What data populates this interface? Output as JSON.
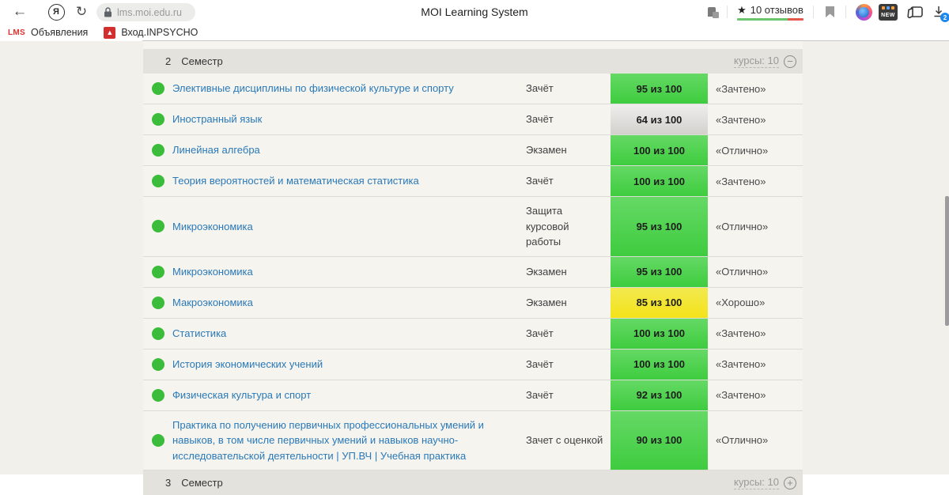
{
  "browser": {
    "url": "lms.moi.edu.ru",
    "page_title": "MOI Learning System",
    "reviews_label": "10 отзывов",
    "downloads_count": "2",
    "new_badge": "NEW",
    "bookmarks": [
      {
        "favicon_text": "LMS",
        "label": "Объявления"
      },
      {
        "favicon_text": "М",
        "label": "Вход.INPSYCHO"
      }
    ]
  },
  "section_header": {
    "number": "2",
    "label": "Семестр",
    "courses": "курсы: 10",
    "toggle": "−"
  },
  "section_footer": {
    "number": "3",
    "label": "Семестр",
    "courses": "курсы: 10",
    "toggle": "+"
  },
  "courses": [
    {
      "name": "Элективные дисциплины по физической культуре и спорту",
      "type": "Зачёт",
      "score": "95 из 100",
      "grade": "«Зачтено»",
      "badge": "green"
    },
    {
      "name": "Иностранный язык",
      "type": "Зачёт",
      "score": "64 из 100",
      "grade": "«Зачтено»",
      "badge": "gray"
    },
    {
      "name": "Линейная алгебра",
      "type": "Экзамен",
      "score": "100 из 100",
      "grade": "«Отлично»",
      "badge": "green"
    },
    {
      "name": "Теория вероятностей и математическая статистика",
      "type": "Зачёт",
      "score": "100 из 100",
      "grade": "«Зачтено»",
      "badge": "green"
    },
    {
      "name": "Микроэкономика",
      "type": "Защита курсовой работы",
      "score": "95 из 100",
      "grade": "«Отлично»",
      "badge": "green"
    },
    {
      "name": "Микроэкономика",
      "type": "Экзамен",
      "score": "95 из 100",
      "grade": "«Отлично»",
      "badge": "green"
    },
    {
      "name": "Макроэкономика",
      "type": "Экзамен",
      "score": "85 из 100",
      "grade": "«Хорошо»",
      "badge": "yellow"
    },
    {
      "name": "Статистика",
      "type": "Зачёт",
      "score": "100 из 100",
      "grade": "«Зачтено»",
      "badge": "green"
    },
    {
      "name": "История экономических учений",
      "type": "Зачёт",
      "score": "100 из 100",
      "grade": "«Зачтено»",
      "badge": "green"
    },
    {
      "name": "Физическая культура и спорт",
      "type": "Зачёт",
      "score": "92 из 100",
      "grade": "«Зачтено»",
      "badge": "green"
    },
    {
      "name": "Практика по получению первичных профессиональных умений и навыков, в том числе первичных умений и навыков научно-исследовательской деятельности | УП.ВЧ | Учебная практика",
      "type": "Зачет с оценкой",
      "score": "90 из 100",
      "grade": "«Отлично»",
      "badge": "green"
    }
  ],
  "colors": {
    "status_dot": "#3bbd3b",
    "badge_green_top": "#65d965",
    "badge_green_bottom": "#3fcc3f",
    "badge_yellow_top": "#f2e94f",
    "badge_yellow_bottom": "#f4e319",
    "badge_gray_top": "#efeeec",
    "badge_gray_bottom": "#d3d1ce",
    "link_blue": "#2a79b8",
    "rating_green": "#6cc56c",
    "rating_red": "#e2594b",
    "page_background": "#f1f0eb",
    "band_background": "#e3e2dd"
  }
}
